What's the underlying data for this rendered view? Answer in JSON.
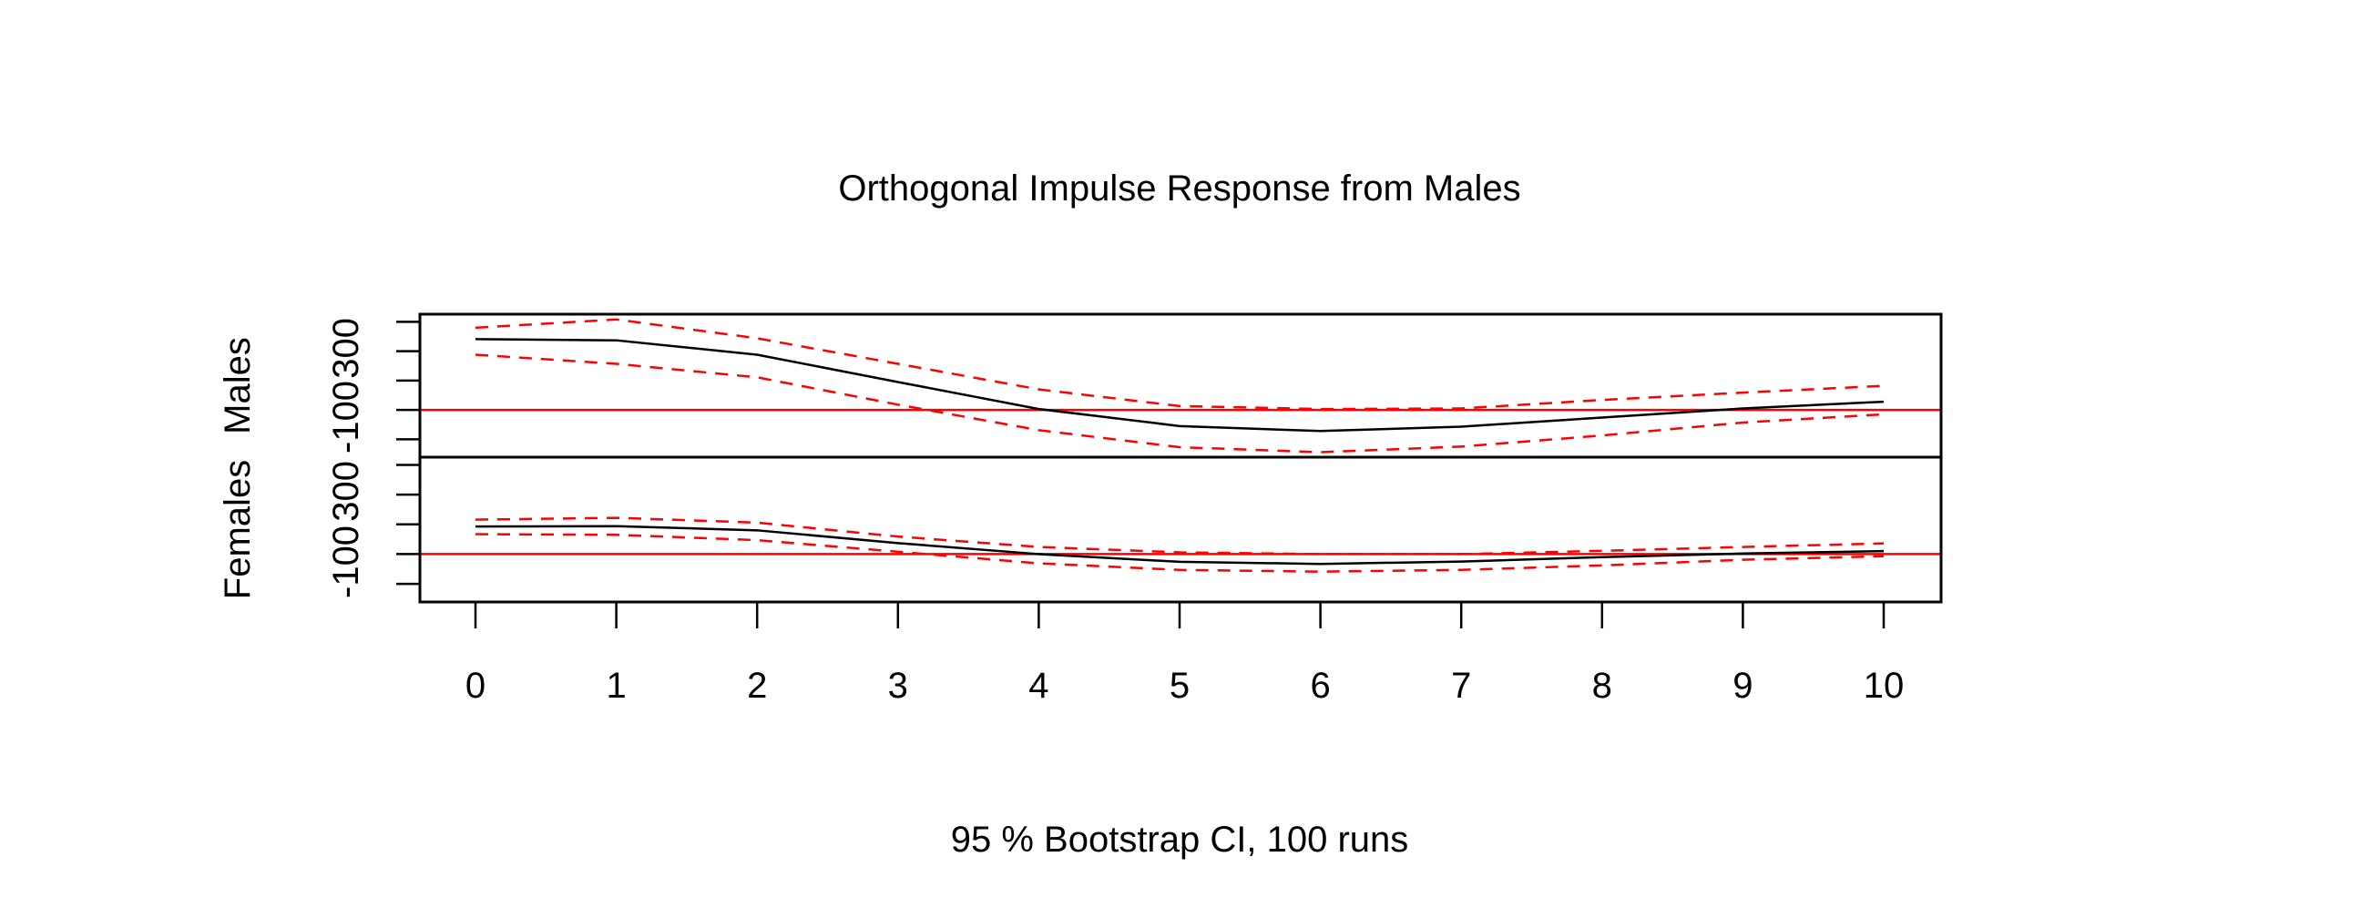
{
  "chart_data": {
    "type": "line",
    "title": "Orthogonal Impulse Response from Males",
    "xlabel": "95 % Bootstrap CI,  100 runs",
    "x": [
      0,
      1,
      2,
      3,
      4,
      5,
      6,
      7,
      8,
      9,
      10
    ],
    "xlim": [
      0,
      10
    ],
    "x_ticks": [
      "0",
      "1",
      "2",
      "3",
      "4",
      "5",
      "6",
      "7",
      "8",
      "9",
      "10"
    ],
    "grid": false,
    "colors": {
      "response": "#000000",
      "ci": "#ff0000",
      "zero_line": "#ff0000"
    },
    "panels": [
      {
        "ylabel": "Males",
        "ylim": [
          -161,
          326
        ],
        "y_ticks": [
          -100,
          0,
          100,
          200,
          300
        ],
        "y_tick_labels": [
          "-100",
          "",
          "",
          "",
          "300"
        ],
        "series": [
          {
            "role": "response",
            "values": [
              241,
              237,
              188,
              95,
              3,
              -55,
              -72,
              -57,
              -26,
              5,
              28
            ]
          },
          {
            "role": "upper",
            "values": [
              280,
              308,
              244,
              157,
              70,
              13,
              3,
              5,
              34,
              59,
              82
            ]
          },
          {
            "role": "lower",
            "values": [
              188,
              157,
              111,
              18,
              -69,
              -127,
              -144,
              -125,
              -87,
              -43,
              -15
            ]
          }
        ]
      },
      {
        "ylabel": "Females",
        "ylim": [
          -161,
          326
        ],
        "y_ticks": [
          -100,
          0,
          100,
          200,
          300
        ],
        "y_tick_labels": [
          "-100",
          "",
          "",
          "",
          "300"
        ],
        "series": [
          {
            "role": "response",
            "values": [
              93,
              94,
              80,
              37,
              0,
              -26,
              -33,
              -25,
              -10,
              2,
              10
            ]
          },
          {
            "role": "upper",
            "values": [
              116,
              122,
              106,
              59,
              24,
              6,
              0,
              0,
              11,
              24,
              36
            ]
          },
          {
            "role": "lower",
            "values": [
              67,
              65,
              47,
              8,
              -31,
              -53,
              -59,
              -53,
              -38,
              -19,
              -7
            ]
          }
        ]
      }
    ]
  }
}
